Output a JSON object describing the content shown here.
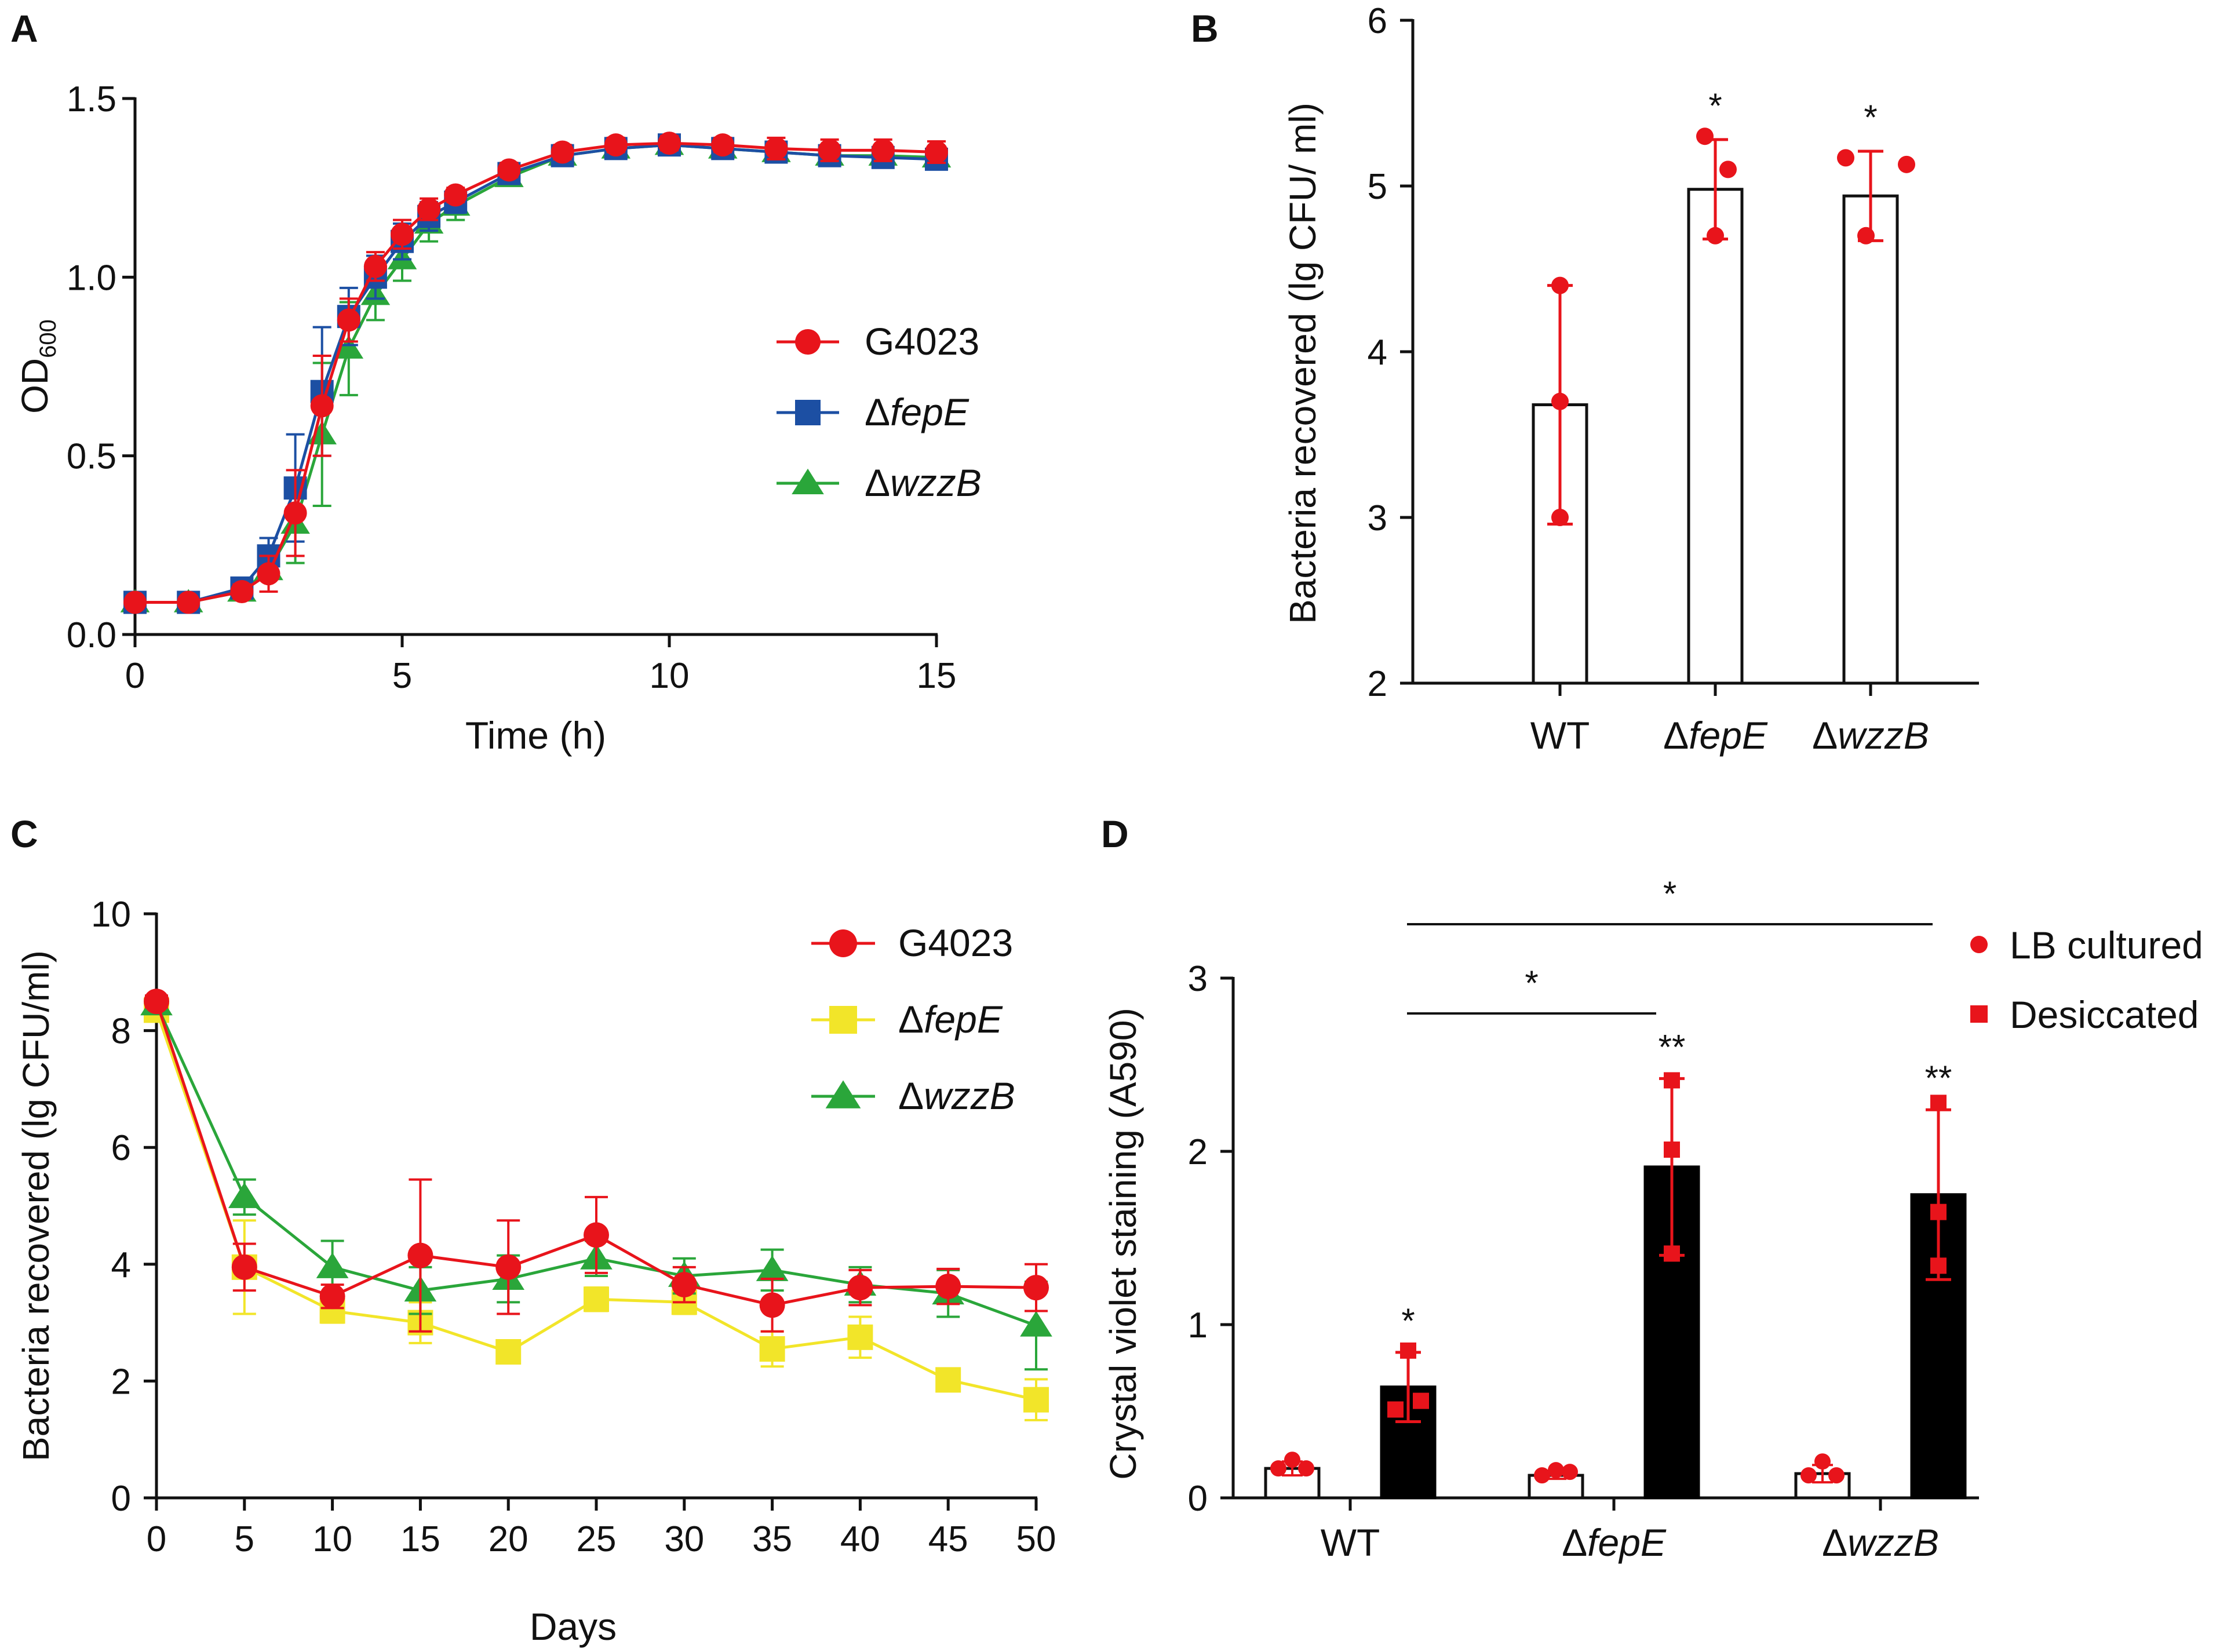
{
  "chart_data": [
    {
      "panel": "A",
      "type": "line",
      "xlabel": "Time (h)",
      "ylabel_base": "OD",
      "ylabel_sub": "600",
      "xlim": [
        0,
        15
      ],
      "ylim": [
        0,
        1.5
      ],
      "xticks": [
        0,
        5,
        10,
        15
      ],
      "yticks": [
        0.0,
        0.5,
        1.0,
        1.5
      ],
      "ytick_labels": [
        "0.0",
        "0.5",
        "1.0",
        "1.5"
      ],
      "x": [
        0,
        1,
        2,
        2.5,
        3,
        3.5,
        4,
        4.5,
        5,
        5.5,
        6,
        7,
        8,
        9,
        10,
        11,
        12,
        13,
        14,
        15
      ],
      "series": [
        {
          "name": "G4023",
          "italic": false,
          "prefix": "",
          "color": "#e8141b",
          "marker": "circle",
          "values": [
            0.09,
            0.09,
            0.12,
            0.17,
            0.34,
            0.64,
            0.88,
            1.03,
            1.12,
            1.19,
            1.23,
            1.3,
            1.35,
            1.37,
            1.375,
            1.37,
            1.36,
            1.355,
            1.355,
            1.35
          ],
          "errors": [
            0.01,
            0.01,
            0.02,
            0.05,
            0.12,
            0.14,
            0.06,
            0.04,
            0.04,
            0.03,
            0.02,
            0.02,
            0.02,
            0.02,
            0.02,
            0.02,
            0.03,
            0.03,
            0.03,
            0.03
          ]
        },
        {
          "name": "fepE",
          "italic": true,
          "prefix": "Δ",
          "color": "#1c4fa3",
          "marker": "square",
          "values": [
            0.09,
            0.09,
            0.13,
            0.22,
            0.41,
            0.68,
            0.89,
            1.0,
            1.1,
            1.17,
            1.21,
            1.29,
            1.34,
            1.36,
            1.37,
            1.36,
            1.35,
            1.34,
            1.335,
            1.33
          ],
          "errors": [
            0.01,
            0.01,
            0.02,
            0.05,
            0.15,
            0.18,
            0.08,
            0.06,
            0.05,
            0.04,
            0.03,
            0.02,
            0.02,
            0.02,
            0.02,
            0.02,
            0.02,
            0.02,
            0.02,
            0.02
          ]
        },
        {
          "name": "wzzB",
          "italic": true,
          "prefix": "Δ",
          "color": "#2aa63a",
          "marker": "triangle",
          "values": [
            0.09,
            0.09,
            0.12,
            0.18,
            0.31,
            0.56,
            0.8,
            0.95,
            1.05,
            1.15,
            1.2,
            1.28,
            1.34,
            1.36,
            1.37,
            1.36,
            1.35,
            1.34,
            1.34,
            1.335
          ],
          "errors": [
            0.01,
            0.01,
            0.02,
            0.06,
            0.11,
            0.2,
            0.13,
            0.07,
            0.06,
            0.05,
            0.04,
            0.02,
            0.02,
            0.02,
            0.02,
            0.02,
            0.02,
            0.02,
            0.02,
            0.02
          ]
        }
      ]
    },
    {
      "panel": "B",
      "type": "bar",
      "ylabel": "Bacteria recovered (lg CFU/ ml)",
      "ylim": [
        2,
        6
      ],
      "yticks": [
        2,
        3,
        4,
        5,
        6
      ],
      "color": "#e8141b",
      "categories": [
        {
          "label": "WT",
          "prefix": "",
          "italic": false,
          "mean": 3.68,
          "sd": 0.72,
          "points": [
            3.0,
            3.7,
            4.4
          ],
          "sig": ""
        },
        {
          "label": "fepE",
          "prefix": "Δ",
          "italic": true,
          "mean": 4.98,
          "sd": 0.3,
          "points": [
            4.7,
            5.1,
            5.3
          ],
          "sig": "*"
        },
        {
          "label": "wzzB",
          "prefix": "Δ",
          "italic": true,
          "mean": 4.94,
          "sd": 0.27,
          "points": [
            4.7,
            5.13,
            5.17
          ],
          "sig": "*"
        }
      ]
    },
    {
      "panel": "C",
      "type": "line",
      "xlabel": "Days",
      "ylabel": "Bacteria recovered (lg CFU/ml)",
      "xlim": [
        0,
        50
      ],
      "ylim": [
        0,
        10
      ],
      "xticks": [
        0,
        5,
        10,
        15,
        20,
        25,
        30,
        35,
        40,
        45,
        50
      ],
      "yticks": [
        0,
        2,
        4,
        6,
        8,
        10
      ],
      "x": [
        0,
        5,
        10,
        15,
        20,
        25,
        30,
        35,
        40,
        45,
        50
      ],
      "series": [
        {
          "name": "G4023",
          "italic": false,
          "prefix": "",
          "color": "#e8141b",
          "marker": "circle",
          "values": [
            8.5,
            3.95,
            3.45,
            4.15,
            3.95,
            4.5,
            3.65,
            3.3,
            3.6,
            3.62,
            3.6
          ],
          "errors": [
            0.1,
            0.4,
            0.2,
            1.3,
            0.8,
            0.65,
            0.3,
            0.45,
            0.3,
            0.3,
            0.4
          ]
        },
        {
          "name": "fepE",
          "italic": true,
          "prefix": "Δ",
          "color": "#f2e529",
          "marker": "square",
          "values": [
            8.35,
            3.95,
            3.2,
            3.0,
            2.5,
            3.4,
            3.35,
            2.55,
            2.75,
            2.02,
            1.68
          ],
          "errors": [
            0.1,
            0.8,
            0.2,
            0.35,
            0.1,
            0.2,
            0.2,
            0.3,
            0.35,
            0.1,
            0.35
          ]
        },
        {
          "name": "wzzB",
          "italic": true,
          "prefix": "Δ",
          "color": "#2aa63a",
          "marker": "triangle",
          "values": [
            8.45,
            5.15,
            3.95,
            3.55,
            3.75,
            4.1,
            3.8,
            3.9,
            3.65,
            3.5,
            2.95
          ],
          "errors": [
            0.1,
            0.3,
            0.45,
            0.4,
            0.4,
            0.3,
            0.3,
            0.35,
            0.3,
            0.4,
            0.75
          ]
        }
      ]
    },
    {
      "panel": "D",
      "type": "bar",
      "ylabel": "Crystal violet staining (A590)",
      "ylim": [
        0,
        3
      ],
      "yticks": [
        0,
        1,
        2,
        3
      ],
      "point_color": "#e8141b",
      "legend": [
        {
          "label": "LB cultured",
          "marker": "circle"
        },
        {
          "label": "Desiccated",
          "marker": "square"
        }
      ],
      "groups": [
        {
          "label": "WT",
          "prefix": "",
          "italic": false,
          "lb": {
            "mean": 0.17,
            "sd": 0.04,
            "points": [
              0.17,
              0.22,
              0.17
            ]
          },
          "desiccated": {
            "mean": 0.64,
            "sd": 0.2,
            "points": [
              0.51,
              0.56,
              0.85
            ],
            "sig": "*"
          }
        },
        {
          "label": "fepE",
          "prefix": "Δ",
          "italic": true,
          "lb": {
            "mean": 0.13,
            "sd": 0.02,
            "points": [
              0.13,
              0.16,
              0.15
            ]
          },
          "desiccated": {
            "mean": 1.91,
            "sd": 0.51,
            "points": [
              1.41,
              2.01,
              2.41
            ],
            "sig": "**"
          }
        },
        {
          "label": "wzzB",
          "prefix": "Δ",
          "italic": true,
          "lb": {
            "mean": 0.14,
            "sd": 0.05,
            "points": [
              0.13,
              0.21,
              0.13
            ]
          },
          "desiccated": {
            "mean": 1.75,
            "sd": 0.49,
            "points": [
              1.34,
              1.65,
              2.28
            ],
            "sig": "**"
          }
        }
      ],
      "comparisons": [
        {
          "from": "WT",
          "to": "fepE",
          "label": "*"
        },
        {
          "from": "WT",
          "to": "wzzB",
          "label": "*"
        }
      ]
    }
  ]
}
